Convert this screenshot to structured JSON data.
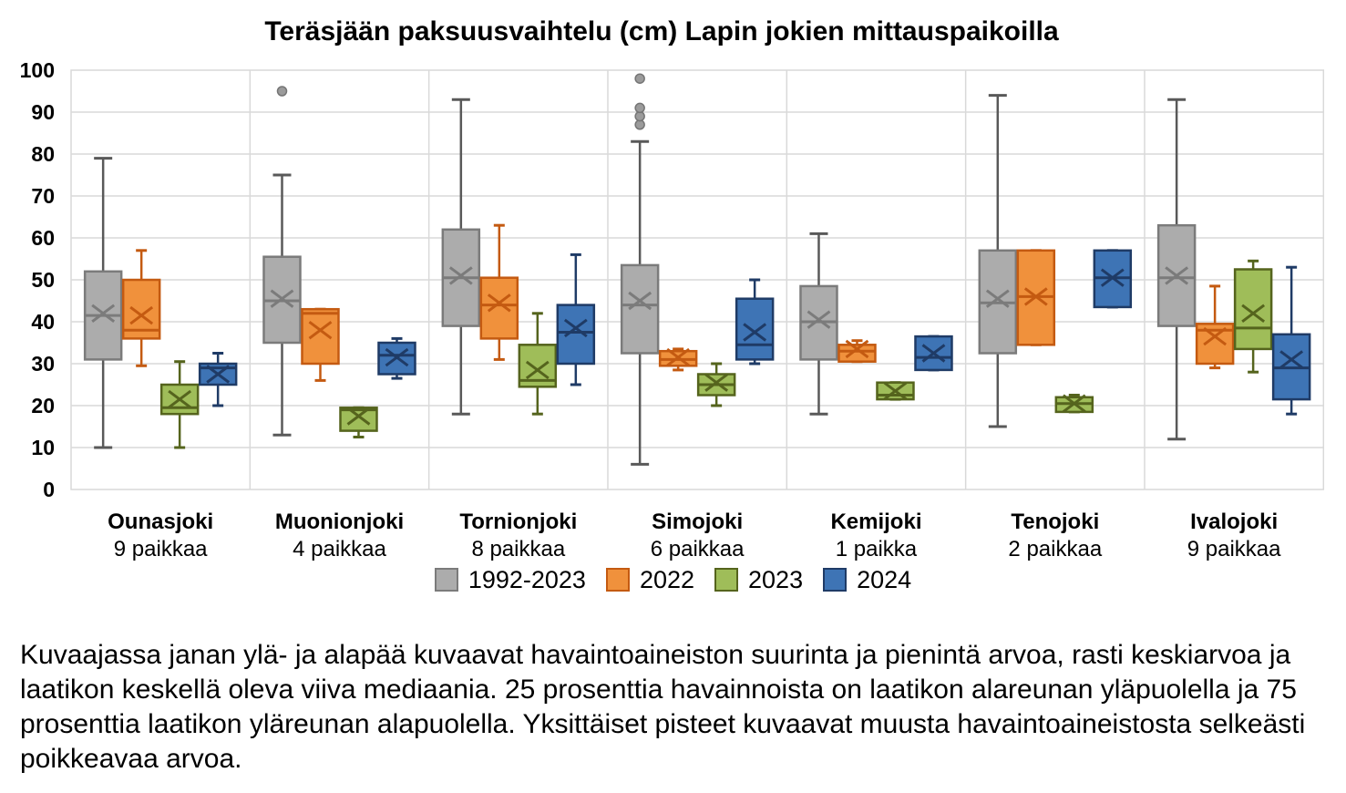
{
  "title": "Teräsjään paksuusvaihtelu (cm) Lapin jokien mittauspaikoilla",
  "caption": {
    "lines": [
      "Kuvaajassa janan ylä- ja alapää kuvaavat havaintoaineiston suurinta ja pienintä arvoa, rasti keskiarvoa ja",
      "laatikon keskellä oleva viiva mediaania. 25 prosenttia havainnoista on laatikon alareunan yläpuolella ja 75",
      "prosenttia laatikon yläreunan alapuolella. Yksittäiset pisteet kuvaavat muusta havaintoaineistosta selkeästi",
      "poikkeavaa arvoa."
    ]
  },
  "chart_data": {
    "type": "boxplot",
    "title": "Teräsjään paksuusvaihtelu (cm) Lapin jokien mittauspaikoilla",
    "ylabel": "",
    "xlabel": "",
    "ylim": [
      0,
      100
    ],
    "yticks": [
      0,
      10,
      20,
      30,
      40,
      50,
      60,
      70,
      80,
      90,
      100
    ],
    "grid": true,
    "gridline_color": "#D9D9D9",
    "legend_position": "bottom",
    "categories": [
      {
        "name": "Ounasjoki",
        "sites": "9 paikkaa"
      },
      {
        "name": "Muonionjoki",
        "sites": "4 paikkaa"
      },
      {
        "name": "Tornionjoki",
        "sites": "8 paikkaa"
      },
      {
        "name": "Simojoki",
        "sites": "6 paikkaa"
      },
      {
        "name": "Kemijoki",
        "sites": "1 paikka"
      },
      {
        "name": "Tenojoki",
        "sites": "2 paikkaa"
      },
      {
        "name": "Ivalojoki",
        "sites": "9 paikkaa"
      }
    ],
    "series": [
      {
        "name": "1992-2023",
        "fill": "#ACACAC",
        "stroke": "#7B7B7B",
        "whisker": "#595959",
        "boxes": [
          {
            "min": 10,
            "q1": 31,
            "median": 41.5,
            "mean": 42,
            "q3": 52,
            "max": 79,
            "outliers": []
          },
          {
            "min": 13,
            "q1": 35,
            "median": 45,
            "mean": 45.5,
            "q3": 55.5,
            "max": 75,
            "outliers": [
              95
            ]
          },
          {
            "min": 18,
            "q1": 39,
            "median": 50.5,
            "mean": 51,
            "q3": 62,
            "max": 93,
            "outliers": []
          },
          {
            "min": 6,
            "q1": 32.5,
            "median": 44,
            "mean": 45,
            "q3": 53.5,
            "max": 83,
            "outliers": [
              87,
              89,
              91,
              98
            ]
          },
          {
            "min": 18,
            "q1": 31,
            "median": 40,
            "mean": 40.5,
            "q3": 48.5,
            "max": 61,
            "outliers": []
          },
          {
            "min": 15,
            "q1": 32.5,
            "median": 44.5,
            "mean": 45.5,
            "q3": 57,
            "max": 94,
            "outliers": []
          },
          {
            "min": 12,
            "q1": 39,
            "median": 50.5,
            "mean": 51,
            "q3": 63,
            "max": 93,
            "outliers": []
          }
        ]
      },
      {
        "name": "2022",
        "fill": "#F0913C",
        "stroke": "#C45A11",
        "whisker": "#C45A11",
        "boxes": [
          {
            "min": 29.5,
            "q1": 36,
            "median": 38,
            "mean": 41.5,
            "q3": 50,
            "max": 57,
            "outliers": []
          },
          {
            "min": 26,
            "q1": 30,
            "median": 42,
            "mean": 38,
            "q3": 43,
            "max": 43,
            "outliers": []
          },
          {
            "min": 31,
            "q1": 36,
            "median": 44,
            "mean": 44.5,
            "q3": 50.5,
            "max": 63,
            "outliers": []
          },
          {
            "min": 28.5,
            "q1": 29.5,
            "median": 31,
            "mean": 31.5,
            "q3": 33,
            "max": 33.5,
            "outliers": []
          },
          {
            "min": 30.5,
            "q1": 30.5,
            "median": 33,
            "mean": 33.5,
            "q3": 34.5,
            "max": 35.5,
            "outliers": []
          },
          {
            "min": 34.5,
            "q1": 34.5,
            "median": 46,
            "mean": 46,
            "q3": 57,
            "max": 57,
            "outliers": []
          },
          {
            "min": 29,
            "q1": 30,
            "median": 38,
            "mean": 36.5,
            "q3": 39.5,
            "max": 48.5,
            "outliers": []
          }
        ]
      },
      {
        "name": "2023",
        "fill": "#9FBD59",
        "stroke": "#55641D",
        "whisker": "#55641D",
        "boxes": [
          {
            "min": 10,
            "q1": 18,
            "median": 19.5,
            "mean": 21.5,
            "q3": 25,
            "max": 30.5,
            "outliers": []
          },
          {
            "min": 12.5,
            "q1": 14,
            "median": 19,
            "mean": 17.5,
            "q3": 19.5,
            "max": 19.5,
            "outliers": []
          },
          {
            "min": 18,
            "q1": 24.5,
            "median": 26,
            "mean": 28.5,
            "q3": 34.5,
            "max": 42,
            "outliers": []
          },
          {
            "min": 20,
            "q1": 22.5,
            "median": 25,
            "mean": 25.5,
            "q3": 27.5,
            "max": 30,
            "outliers": []
          },
          {
            "min": 21.5,
            "q1": 21.5,
            "median": 22.5,
            "mean": 23.5,
            "q3": 25.5,
            "max": 25.5,
            "outliers": []
          },
          {
            "min": 18.5,
            "q1": 18.5,
            "median": 20.5,
            "mean": 20.5,
            "q3": 22,
            "max": 22.5,
            "outliers": []
          },
          {
            "min": 28,
            "q1": 33.5,
            "median": 38.5,
            "mean": 42,
            "q3": 52.5,
            "max": 54.5,
            "outliers": []
          }
        ]
      },
      {
        "name": "2024",
        "fill": "#3E74B5",
        "stroke": "#1F3B66",
        "whisker": "#1F3B66",
        "boxes": [
          {
            "min": 20,
            "q1": 25,
            "median": 29,
            "mean": 27.5,
            "q3": 30,
            "max": 32.5,
            "outliers": []
          },
          {
            "min": 26.5,
            "q1": 27.5,
            "median": 32,
            "mean": 31.5,
            "q3": 35,
            "max": 36,
            "outliers": []
          },
          {
            "min": 25,
            "q1": 30,
            "median": 37.5,
            "mean": 38.5,
            "q3": 44,
            "max": 56,
            "outliers": []
          },
          {
            "min": 30,
            "q1": 31,
            "median": 34.5,
            "mean": 37.5,
            "q3": 45.5,
            "max": 50,
            "outliers": []
          },
          {
            "min": 28.5,
            "q1": 28.5,
            "median": 31.5,
            "mean": 32.5,
            "q3": 36.5,
            "max": 36.5,
            "outliers": []
          },
          {
            "min": 43.5,
            "q1": 43.5,
            "median": 50.5,
            "mean": 50.5,
            "q3": 57,
            "max": 57,
            "outliers": []
          },
          {
            "min": 18,
            "q1": 21.5,
            "median": 29,
            "mean": 31,
            "q3": 37,
            "max": 53,
            "outliers": []
          }
        ]
      }
    ],
    "outlier_color": "#9B9B9B",
    "outlier_stroke": "#757575"
  }
}
